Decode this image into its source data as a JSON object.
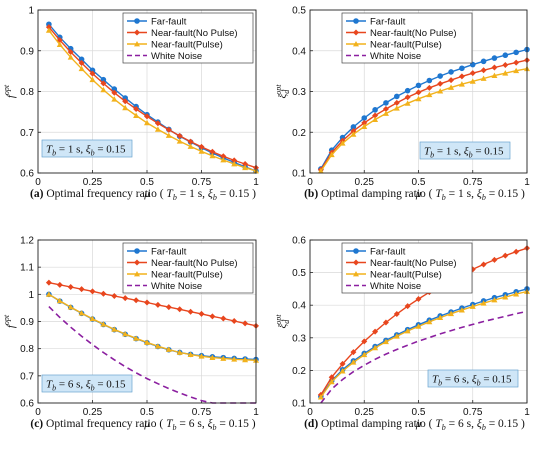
{
  "colors": {
    "far_fault": "#1f77d0",
    "near_no_pulse": "#e8461e",
    "near_pulse": "#f2b21c",
    "white_noise": "#8b1fa0",
    "annotation_fill": "#cfe6f7",
    "annotation_border": "#6aa4cf"
  },
  "legend_labels": [
    "Far-fault",
    "Near-fault(No Pulse)",
    "Near-fault(Pulse)",
    "White Noise"
  ],
  "chart_data": [
    {
      "type": "line",
      "panel": "a",
      "caption": "(a) Optimal frequency ratio ( Tb = 1 s,  ξb = 0.15 )",
      "xlabel": "μ",
      "ylabel": "f opt",
      "annotation": "Tb = 1 s, ξb = 0.15",
      "xlim": [
        0,
        1
      ],
      "ylim": [
        0.6,
        1.0
      ],
      "xticks": [
        "0",
        "0.25",
        "0.5",
        "0.75",
        "1"
      ],
      "yticks": [
        "0.6",
        "0.7",
        "0.8",
        "0.9",
        "1"
      ],
      "grid": true,
      "legend_position": "top-right",
      "x": [
        0.05,
        0.1,
        0.15,
        0.2,
        0.25,
        0.3,
        0.35,
        0.4,
        0.45,
        0.5,
        0.55,
        0.6,
        0.65,
        0.7,
        0.75,
        0.8,
        0.85,
        0.9,
        0.95,
        1.0
      ],
      "series": [
        {
          "name": "Far-fault",
          "marker": "circle",
          "values": [
            0.965,
            0.933,
            0.905,
            0.879,
            0.852,
            0.829,
            0.806,
            0.784,
            0.763,
            0.743,
            0.725,
            0.707,
            0.69,
            0.676,
            0.662,
            0.649,
            0.637,
            0.626,
            0.615,
            0.605
          ]
        },
        {
          "name": "Near-fault(No Pulse)",
          "marker": "diamond",
          "values": [
            0.958,
            0.926,
            0.897,
            0.87,
            0.844,
            0.82,
            0.797,
            0.776,
            0.757,
            0.739,
            0.722,
            0.706,
            0.691,
            0.677,
            0.664,
            0.652,
            0.641,
            0.631,
            0.622,
            0.613
          ]
        },
        {
          "name": "Near-fault(Pulse)",
          "marker": "triangle",
          "values": [
            0.95,
            0.915,
            0.884,
            0.856,
            0.829,
            0.804,
            0.781,
            0.76,
            0.741,
            0.723,
            0.707,
            0.692,
            0.678,
            0.665,
            0.653,
            0.642,
            0.632,
            0.622,
            0.613,
            0.605
          ]
        }
      ]
    },
    {
      "type": "line",
      "panel": "b",
      "caption": "(b) Optimal damping ratio ( Tb = 1 s,  ξb = 0.15 )",
      "xlabel": "μ",
      "ylabel": "ξd opt",
      "annotation": "Tb = 1 s, ξb = 0.15",
      "xlim": [
        0,
        1
      ],
      "ylim": [
        0.1,
        0.5
      ],
      "xticks": [
        "0",
        "0.25",
        "0.5",
        "0.75",
        "1"
      ],
      "yticks": [
        "0.1",
        "0.2",
        "0.3",
        "0.4",
        "0.5"
      ],
      "grid": true,
      "legend_position": "top-left",
      "x": [
        0.05,
        0.1,
        0.15,
        0.2,
        0.25,
        0.3,
        0.35,
        0.4,
        0.45,
        0.5,
        0.55,
        0.6,
        0.65,
        0.7,
        0.75,
        0.8,
        0.85,
        0.9,
        0.95,
        1.0
      ],
      "series": [
        {
          "name": "Far-fault",
          "marker": "circle",
          "values": [
            0.11,
            0.156,
            0.187,
            0.213,
            0.235,
            0.255,
            0.272,
            0.288,
            0.302,
            0.315,
            0.327,
            0.338,
            0.348,
            0.357,
            0.366,
            0.374,
            0.382,
            0.389,
            0.396,
            0.403
          ]
        },
        {
          "name": "Near-fault(No Pulse)",
          "marker": "diamond",
          "values": [
            0.108,
            0.15,
            0.179,
            0.203,
            0.223,
            0.241,
            0.257,
            0.272,
            0.286,
            0.298,
            0.309,
            0.319,
            0.328,
            0.337,
            0.345,
            0.352,
            0.359,
            0.365,
            0.371,
            0.377
          ]
        },
        {
          "name": "Near-fault(Pulse)",
          "marker": "triangle",
          "values": [
            0.105,
            0.145,
            0.173,
            0.195,
            0.214,
            0.231,
            0.246,
            0.259,
            0.271,
            0.282,
            0.292,
            0.301,
            0.31,
            0.318,
            0.325,
            0.332,
            0.339,
            0.345,
            0.351,
            0.356
          ]
        }
      ]
    },
    {
      "type": "line",
      "panel": "c",
      "caption": "(c) Optimal frequency ratio ( Tb = 6 s,  ξb = 0.15 )",
      "xlabel": "μ",
      "ylabel": "f opt",
      "annotation": "Tb = 6 s, ξb = 0.15",
      "xlim": [
        0,
        1
      ],
      "ylim": [
        0.6,
        1.2
      ],
      "xticks": [
        "0",
        "0.25",
        "0.5",
        "0.75",
        "1"
      ],
      "yticks": [
        "0.6",
        "0.7",
        "0.8",
        "0.9",
        "1",
        "1.1",
        "1.2"
      ],
      "grid": true,
      "legend_position": "top-right",
      "x": [
        0.05,
        0.1,
        0.15,
        0.2,
        0.25,
        0.3,
        0.35,
        0.4,
        0.45,
        0.5,
        0.55,
        0.6,
        0.65,
        0.7,
        0.75,
        0.8,
        0.85,
        0.9,
        0.95,
        1.0
      ],
      "series": [
        {
          "name": "Far-fault",
          "marker": "circle",
          "values": [
            1.0,
            0.975,
            0.952,
            0.93,
            0.909,
            0.889,
            0.87,
            0.853,
            0.837,
            0.822,
            0.808,
            0.796,
            0.786,
            0.779,
            0.774,
            0.77,
            0.767,
            0.764,
            0.762,
            0.76
          ]
        },
        {
          "name": "Near-fault(No Pulse)",
          "marker": "diamond",
          "values": [
            1.043,
            1.035,
            1.027,
            1.019,
            1.011,
            1.002,
            0.994,
            0.986,
            0.978,
            0.97,
            0.961,
            0.953,
            0.945,
            0.936,
            0.928,
            0.919,
            0.911,
            0.902,
            0.893,
            0.884
          ]
        },
        {
          "name": "Near-fault(Pulse)",
          "marker": "triangle",
          "values": [
            1.0,
            0.976,
            0.953,
            0.931,
            0.91,
            0.89,
            0.871,
            0.854,
            0.838,
            0.823,
            0.809,
            0.797,
            0.786,
            0.778,
            0.772,
            0.767,
            0.764,
            0.761,
            0.759,
            0.757
          ]
        },
        {
          "name": "White Noise",
          "marker": "none",
          "dashed": true,
          "values": [
            0.955,
            0.915,
            0.879,
            0.846,
            0.815,
            0.786,
            0.759,
            0.734,
            0.711,
            0.69,
            0.671,
            0.653,
            0.637,
            0.622,
            0.609,
            0.597,
            0.586,
            0.576,
            0.567,
            0.559
          ]
        }
      ]
    },
    {
      "type": "line",
      "panel": "d",
      "caption": "(d) Optimal damping ratio ( Tb = 6 s,  ξb = 0.15 )",
      "xlabel": "μ",
      "ylabel": "ξd opt",
      "annotation": "Tb = 6 s, ξb = 0.15",
      "xlim": [
        0,
        1
      ],
      "ylim": [
        0.1,
        0.6
      ],
      "xticks": [
        "0",
        "0.25",
        "0.5",
        "0.75",
        "1"
      ],
      "yticks": [
        "0.1",
        "0.2",
        "0.3",
        "0.4",
        "0.5",
        "0.6"
      ],
      "grid": true,
      "legend_position": "top-left",
      "x": [
        0.05,
        0.1,
        0.15,
        0.2,
        0.25,
        0.3,
        0.35,
        0.4,
        0.45,
        0.5,
        0.55,
        0.6,
        0.65,
        0.7,
        0.75,
        0.8,
        0.85,
        0.9,
        0.95,
        1.0
      ],
      "series": [
        {
          "name": "Far-fault",
          "marker": "circle",
          "values": [
            0.12,
            0.168,
            0.202,
            0.229,
            0.252,
            0.273,
            0.292,
            0.309,
            0.325,
            0.34,
            0.354,
            0.367,
            0.379,
            0.391,
            0.402,
            0.413,
            0.423,
            0.432,
            0.441,
            0.45
          ]
        },
        {
          "name": "Near-fault(No Pulse)",
          "marker": "diamond",
          "values": [
            0.125,
            0.179,
            0.22,
            0.256,
            0.289,
            0.319,
            0.347,
            0.373,
            0.397,
            0.419,
            0.44,
            0.459,
            0.477,
            0.494,
            0.51,
            0.525,
            0.539,
            0.552,
            0.564,
            0.575
          ]
        },
        {
          "name": "Near-fault(Pulse)",
          "marker": "triangle",
          "values": [
            0.118,
            0.165,
            0.198,
            0.225,
            0.248,
            0.269,
            0.288,
            0.305,
            0.321,
            0.335,
            0.349,
            0.362,
            0.374,
            0.385,
            0.396,
            0.406,
            0.416,
            0.425,
            0.434,
            0.442
          ]
        },
        {
          "name": "White Noise",
          "marker": "none",
          "dashed": true,
          "values": [
            0.1,
            0.143,
            0.172,
            0.196,
            0.216,
            0.234,
            0.25,
            0.264,
            0.277,
            0.29,
            0.301,
            0.312,
            0.322,
            0.332,
            0.341,
            0.35,
            0.358,
            0.366,
            0.374,
            0.381
          ]
        }
      ]
    }
  ]
}
